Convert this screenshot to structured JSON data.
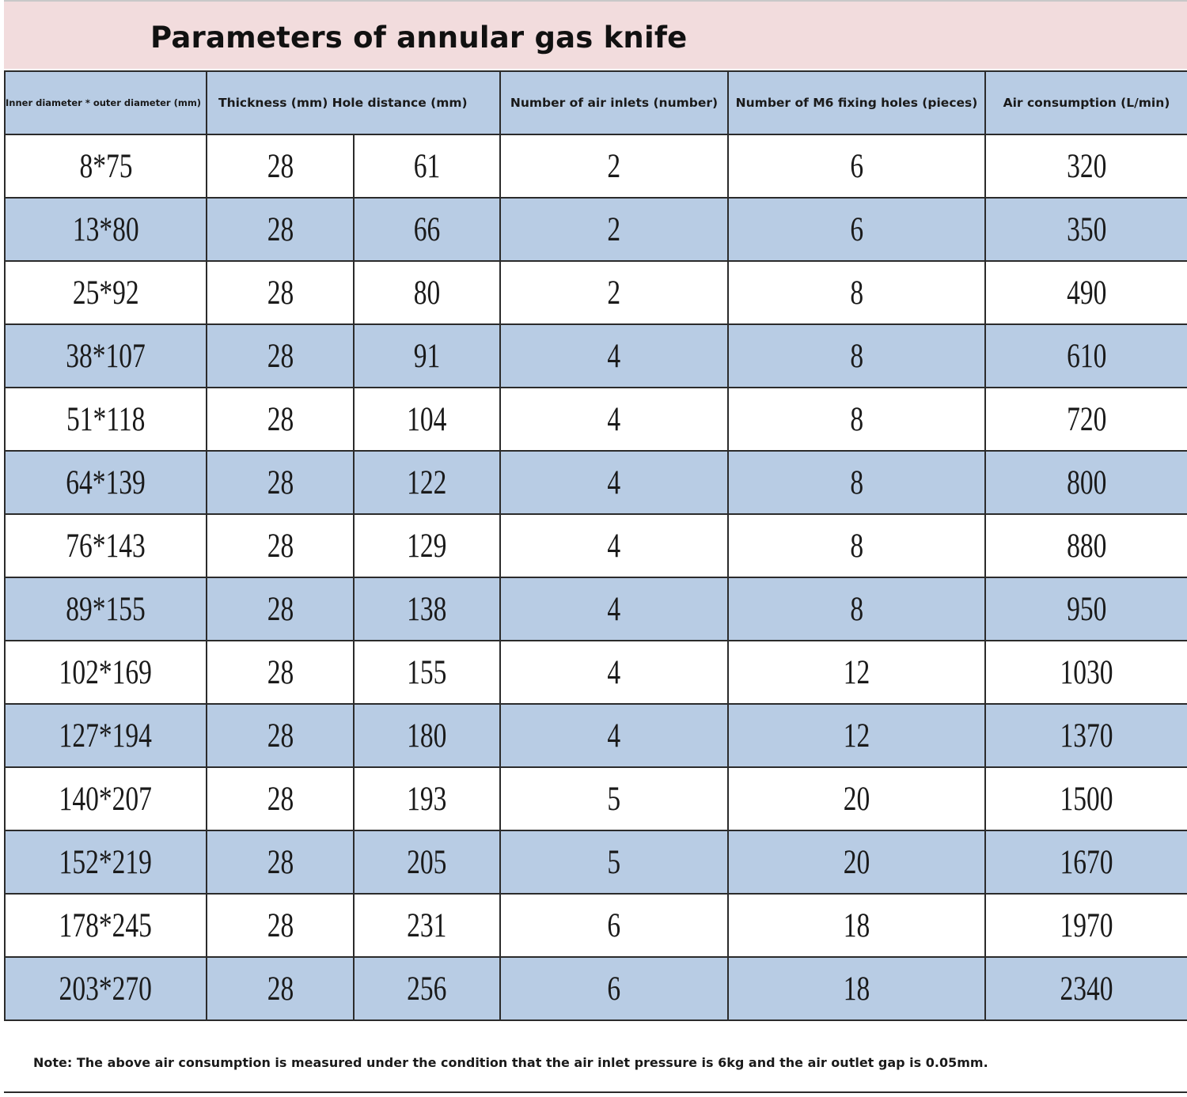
{
  "title": "Parameters of annular gas knife",
  "headers": {
    "diameter": "Inner diameter * outer diameter (mm)",
    "thickness_hole": "Thickness (mm) Hole distance (mm)",
    "air_inlets": "Number of air inlets (number)",
    "fixing_holes": "Number of M6 fixing holes (pieces)",
    "air_consumption": "Air consumption (L/min)"
  },
  "rows": [
    {
      "diameter": "8*75",
      "thickness": "28",
      "hole_distance": "61",
      "air_inlets": "2",
      "fixing_holes": "6",
      "air_consumption": "320"
    },
    {
      "diameter": "13*80",
      "thickness": "28",
      "hole_distance": "66",
      "air_inlets": "2",
      "fixing_holes": "6",
      "air_consumption": "350"
    },
    {
      "diameter": "25*92",
      "thickness": "28",
      "hole_distance": "80",
      "air_inlets": "2",
      "fixing_holes": "8",
      "air_consumption": "490"
    },
    {
      "diameter": "38*107",
      "thickness": "28",
      "hole_distance": "91",
      "air_inlets": "4",
      "fixing_holes": "8",
      "air_consumption": "610"
    },
    {
      "diameter": "51*118",
      "thickness": "28",
      "hole_distance": "104",
      "air_inlets": "4",
      "fixing_holes": "8",
      "air_consumption": "720"
    },
    {
      "diameter": "64*139",
      "thickness": "28",
      "hole_distance": "122",
      "air_inlets": "4",
      "fixing_holes": "8",
      "air_consumption": "800"
    },
    {
      "diameter": "76*143",
      "thickness": "28",
      "hole_distance": "129",
      "air_inlets": "4",
      "fixing_holes": "8",
      "air_consumption": "880"
    },
    {
      "diameter": "89*155",
      "thickness": "28",
      "hole_distance": "138",
      "air_inlets": "4",
      "fixing_holes": "8",
      "air_consumption": "950"
    },
    {
      "diameter": "102*169",
      "thickness": "28",
      "hole_distance": "155",
      "air_inlets": "4",
      "fixing_holes": "12",
      "air_consumption": "1030"
    },
    {
      "diameter": "127*194",
      "thickness": "28",
      "hole_distance": "180",
      "air_inlets": "4",
      "fixing_holes": "12",
      "air_consumption": "1370"
    },
    {
      "diameter": "140*207",
      "thickness": "28",
      "hole_distance": "193",
      "air_inlets": "5",
      "fixing_holes": "20",
      "air_consumption": "1500"
    },
    {
      "diameter": "152*219",
      "thickness": "28",
      "hole_distance": "205",
      "air_inlets": "5",
      "fixing_holes": "20",
      "air_consumption": "1670"
    },
    {
      "diameter": "178*245",
      "thickness": "28",
      "hole_distance": "231",
      "air_inlets": "6",
      "fixing_holes": "18",
      "air_consumption": "1970"
    },
    {
      "diameter": "203*270",
      "thickness": "28",
      "hole_distance": "256",
      "air_inlets": "6",
      "fixing_holes": "18",
      "air_consumption": "2340"
    }
  ],
  "note": "Note: The above air consumption is measured under the condition that the air inlet pressure is 6kg and the air outlet gap is 0.05mm.",
  "colors": {
    "title_band": "#f2dcdd",
    "row_shade": "#b8cce4",
    "row_plain": "#ffffff",
    "grid": "#2b2b2b"
  }
}
